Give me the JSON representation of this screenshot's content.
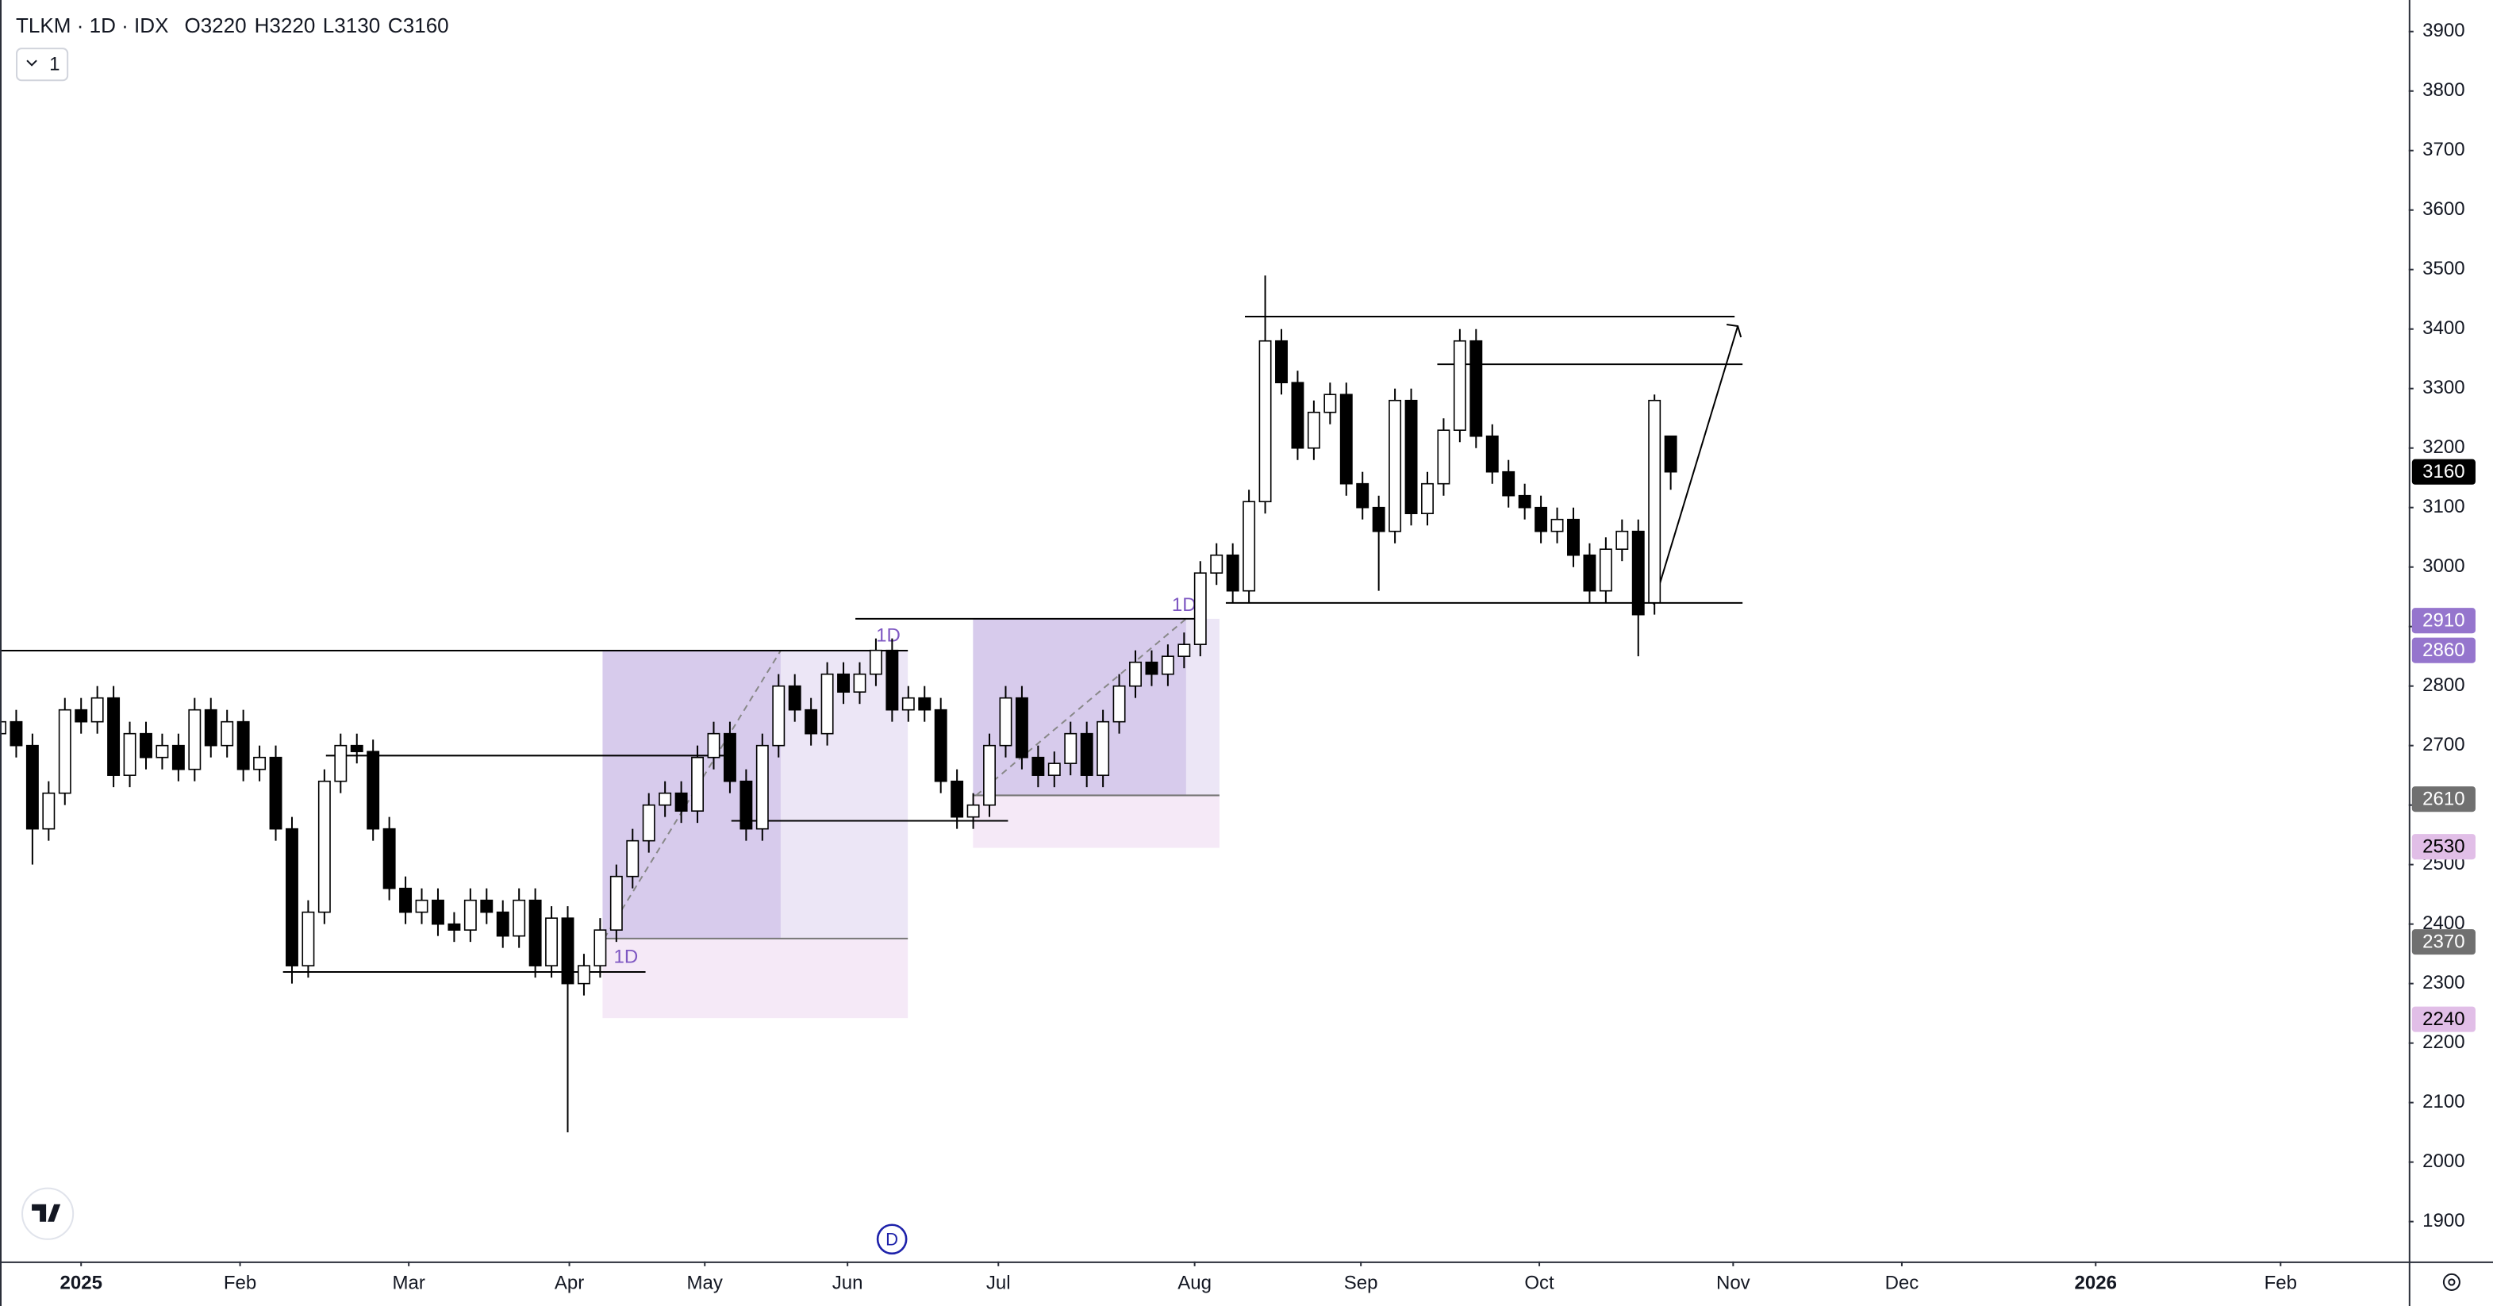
{
  "header": {
    "symbol": "TLKM · 1D · IDX",
    "ohlc": [
      "O3220",
      "H3220",
      "L3130",
      "C3160"
    ],
    "layout_button": "1"
  },
  "chart_data": {
    "type": "candlestick",
    "x": [
      0,
      2,
      4,
      6,
      8,
      10,
      12,
      14,
      16,
      18,
      20,
      22,
      24,
      26,
      28,
      30,
      32,
      34,
      36,
      38,
      40,
      42,
      44,
      46,
      48,
      50,
      52,
      54,
      56,
      58,
      60,
      62,
      64,
      66,
      68,
      70,
      72,
      74,
      76,
      78,
      80,
      82,
      84,
      86,
      88,
      90,
      92,
      94,
      96,
      98,
      100,
      102,
      104,
      106,
      108,
      110,
      112,
      114,
      116,
      118,
      120,
      122,
      124,
      126,
      128,
      130,
      132,
      134,
      136,
      138,
      140,
      142,
      144,
      146,
      148,
      150,
      152,
      154,
      156,
      158,
      160,
      162,
      164,
      166,
      168,
      170,
      172,
      174,
      176,
      178,
      180,
      182,
      184,
      186,
      188,
      190,
      192,
      194,
      196,
      198,
      200,
      202,
      204,
      206
    ],
    "open": [
      2720,
      2740,
      2700,
      2560,
      2620,
      2760,
      2740,
      2780,
      2650,
      2720,
      2680,
      2700,
      2660,
      2760,
      2700,
      2740,
      2660,
      2680,
      2560,
      2330,
      2420,
      2640,
      2700,
      2690,
      2560,
      2460,
      2420,
      2440,
      2400,
      2390,
      2440,
      2420,
      2380,
      2440,
      2330,
      2410,
      2300,
      2330,
      2390,
      2480,
      2540,
      2600,
      2620,
      2590,
      2680,
      2720,
      2640,
      2560,
      2700,
      2800,
      2760,
      2720,
      2820,
      2790,
      2820,
      2860,
      2760,
      2780,
      2760,
      2640,
      2580,
      2600,
      2700,
      2780,
      2680,
      2650,
      2670,
      2720,
      2650,
      2740,
      2800,
      2840,
      2820,
      2850,
      2870,
      2990,
      3020,
      2960,
      3110,
      3380,
      3310,
      3200,
      3260,
      3290,
      3140,
      3100,
      3060,
      3280,
      3090,
      3140,
      3230,
      3380,
      3220,
      3160,
      3120,
      3100,
      3060,
      3080,
      3020,
      2960,
      3030,
      3060,
      2940,
      3220
    ],
    "high": [
      2760,
      2760,
      2720,
      2640,
      2780,
      2780,
      2800,
      2800,
      2740,
      2740,
      2720,
      2720,
      2780,
      2780,
      2760,
      2760,
      2700,
      2700,
      2580,
      2440,
      2660,
      2720,
      2720,
      2710,
      2580,
      2480,
      2460,
      2460,
      2420,
      2460,
      2460,
      2440,
      2460,
      2460,
      2430,
      2430,
      2350,
      2410,
      2500,
      2560,
      2620,
      2640,
      2640,
      2700,
      2740,
      2740,
      2660,
      2720,
      2820,
      2820,
      2780,
      2840,
      2840,
      2840,
      2880,
      2880,
      2800,
      2800,
      2780,
      2660,
      2620,
      2720,
      2800,
      2800,
      2700,
      2690,
      2740,
      2740,
      2760,
      2820,
      2860,
      2860,
      2870,
      2890,
      3010,
      3040,
      3040,
      3130,
      3490,
      3400,
      3330,
      3280,
      3310,
      3310,
      3160,
      3120,
      3300,
      3300,
      3160,
      3250,
      3400,
      3400,
      3240,
      3180,
      3140,
      3120,
      3100,
      3100,
      3040,
      3050,
      3080,
      3080,
      3290,
      3220
    ],
    "low": [
      2700,
      2680,
      2500,
      2540,
      2600,
      2720,
      2720,
      2630,
      2630,
      2660,
      2660,
      2640,
      2640,
      2680,
      2680,
      2640,
      2640,
      2540,
      2300,
      2310,
      2400,
      2620,
      2670,
      2540,
      2440,
      2400,
      2400,
      2380,
      2370,
      2370,
      2400,
      2360,
      2360,
      2310,
      2310,
      2050,
      2280,
      2310,
      2370,
      2460,
      2520,
      2580,
      2570,
      2570,
      2660,
      2620,
      2540,
      2540,
      2680,
      2740,
      2700,
      2700,
      2770,
      2770,
      2800,
      2740,
      2740,
      2740,
      2620,
      2560,
      2560,
      2580,
      2680,
      2660,
      2630,
      2630,
      2650,
      2630,
      2630,
      2720,
      2780,
      2800,
      2800,
      2830,
      2850,
      2970,
      2940,
      2940,
      3090,
      3290,
      3180,
      3180,
      3240,
      3120,
      3080,
      2960,
      3040,
      3070,
      3070,
      3120,
      3210,
      3200,
      3140,
      3100,
      3080,
      3040,
      3040,
      3000,
      2940,
      2940,
      3010,
      2850,
      2920,
      3130
    ],
    "close": [
      2740,
      2700,
      2560,
      2620,
      2760,
      2740,
      2780,
      2650,
      2720,
      2680,
      2700,
      2660,
      2760,
      2700,
      2740,
      2660,
      2680,
      2560,
      2330,
      2420,
      2640,
      2700,
      2690,
      2560,
      2460,
      2420,
      2440,
      2400,
      2390,
      2440,
      2420,
      2380,
      2440,
      2330,
      2410,
      2300,
      2330,
      2390,
      2480,
      2540,
      2600,
      2620,
      2590,
      2680,
      2720,
      2640,
      2560,
      2700,
      2800,
      2760,
      2720,
      2820,
      2790,
      2820,
      2860,
      2760,
      2780,
      2760,
      2640,
      2580,
      2600,
      2700,
      2780,
      2680,
      2650,
      2670,
      2720,
      2650,
      2740,
      2800,
      2840,
      2820,
      2850,
      2870,
      2990,
      3020,
      2960,
      3110,
      3380,
      3310,
      3200,
      3260,
      3290,
      3140,
      3100,
      3060,
      3280,
      3090,
      3140,
      3230,
      3380,
      3220,
      3160,
      3120,
      3100,
      3060,
      3080,
      3020,
      2960,
      3030,
      3060,
      2920,
      3280,
      3160
    ],
    "up_color": "#ffffff",
    "down_color": "#000000",
    "xlim": [
      0,
      297
    ],
    "xticks": [
      {
        "value": 10,
        "label": "2025"
      },
      {
        "value": 29.6,
        "label": "Feb"
      },
      {
        "value": 50.4,
        "label": "Mar"
      },
      {
        "value": 70.2,
        "label": "Apr"
      },
      {
        "value": 86.9,
        "label": "May"
      },
      {
        "value": 104.5,
        "label": "Jun"
      },
      {
        "value": 123.1,
        "label": "Jul"
      },
      {
        "value": 147.3,
        "label": "Aug"
      },
      {
        "value": 167.8,
        "label": "Sep"
      },
      {
        "value": 189.8,
        "label": "Oct"
      },
      {
        "value": 213.7,
        "label": "Nov"
      },
      {
        "value": 234.5,
        "label": "Dec"
      },
      {
        "value": 258.4,
        "label": "2026"
      },
      {
        "value": 281.2,
        "label": "Feb"
      }
    ],
    "ylim": [
      1833,
      3953
    ],
    "yticks": [
      1900,
      2000,
      2100,
      2200,
      2300,
      2400,
      2500,
      2600,
      2700,
      2800,
      2900,
      3000,
      3100,
      3200,
      3300,
      3400,
      3500,
      3600,
      3700,
      3800,
      3900
    ],
    "price_labels": [
      {
        "value": 3160,
        "color": "#000000",
        "text_color": "#ffffff"
      },
      {
        "value": 2910,
        "color": "#9575cd",
        "text_color": "#ffffff"
      },
      {
        "value": 2860,
        "color": "#9575cd",
        "text_color": "#ffffff"
      },
      {
        "value": 2610,
        "color": "#707070",
        "text_color": "#ffffff"
      },
      {
        "value": 2530,
        "color": "#e1bee7",
        "text_color": "#000000"
      },
      {
        "value": 2370,
        "color": "#707070",
        "text_color": "#ffffff"
      },
      {
        "value": 2240,
        "color": "#e1bee7",
        "text_color": "#000000"
      }
    ]
  },
  "drawings": {
    "timeframe": "1D"
  },
  "event_marker": "D"
}
